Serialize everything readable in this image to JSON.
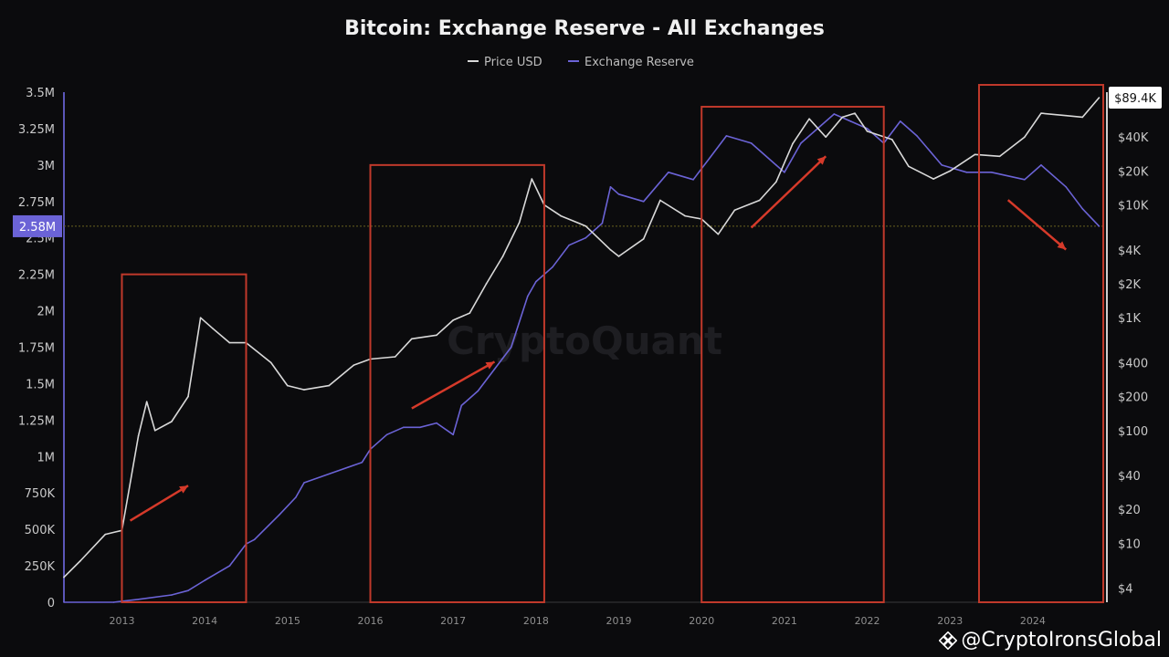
{
  "chart_data": {
    "type": "line",
    "title": "Bitcoin: Exchange Reserve - All Exchanges",
    "legend": [
      "Price USD",
      "Exchange Reserve"
    ],
    "legend_position": "top-center",
    "x_tick_labels": [
      "2013",
      "2014",
      "2015",
      "2016",
      "2017",
      "2018",
      "2019",
      "2020",
      "2021",
      "2022",
      "2023",
      "2024"
    ],
    "left_axis": {
      "ticks": [
        "0",
        "250K",
        "500K",
        "750K",
        "1M",
        "1.25M",
        "1.5M",
        "1.75M",
        "2M",
        "2.25M",
        "2.5M",
        "2.75M",
        "3M",
        "3.25M",
        "3.5M"
      ],
      "ylim": [
        0,
        3500000
      ]
    },
    "right_axis": {
      "scale": "log",
      "ticks": [
        "$4",
        "$10",
        "$20",
        "$40",
        "$100",
        "$200",
        "$400",
        "$1K",
        "$2K",
        "$4K",
        "$10K",
        "$20K",
        "$40K"
      ],
      "ylim": [
        3,
        100000
      ]
    },
    "current_reserve_label": "2.58M",
    "current_reserve_value": 2580000,
    "current_price_label": "$89.4K",
    "current_price_value": 89400,
    "series": [
      {
        "name": "Exchange Reserve",
        "axis": "left",
        "color": "#6b63d6",
        "x": [
          2012.3,
          2012.9,
          2013.2,
          2013.6,
          2013.8,
          2014.0,
          2014.3,
          2014.5,
          2014.6,
          2014.9,
          2015.1,
          2015.2,
          2015.4,
          2015.6,
          2015.9,
          2016.0,
          2016.2,
          2016.4,
          2016.6,
          2016.8,
          2017.0,
          2017.1,
          2017.3,
          2017.5,
          2017.7,
          2017.9,
          2018.0,
          2018.2,
          2018.4,
          2018.6,
          2018.8,
          2018.9,
          2019.0,
          2019.3,
          2019.6,
          2019.9,
          2020.1,
          2020.3,
          2020.6,
          2020.9,
          2021.0,
          2021.2,
          2021.4,
          2021.6,
          2021.8,
          2022.0,
          2022.2,
          2022.4,
          2022.6,
          2022.9,
          2023.2,
          2023.5,
          2023.9,
          2024.1,
          2024.4,
          2024.6,
          2024.8
        ],
        "y": [
          0,
          0,
          20000,
          50000,
          80000,
          150000,
          250000,
          400000,
          430000,
          600000,
          720000,
          820000,
          860000,
          900000,
          960000,
          1050000,
          1150000,
          1200000,
          1200000,
          1230000,
          1150000,
          1350000,
          1450000,
          1600000,
          1750000,
          2100000,
          2200000,
          2300000,
          2450000,
          2500000,
          2600000,
          2850000,
          2800000,
          2750000,
          2950000,
          2900000,
          3050000,
          3200000,
          3150000,
          3000000,
          2950000,
          3150000,
          3250000,
          3350000,
          3300000,
          3250000,
          3150000,
          3300000,
          3200000,
          3000000,
          2950000,
          2950000,
          2900000,
          3000000,
          2850000,
          2700000,
          2580000
        ]
      },
      {
        "name": "Price USD",
        "axis": "right",
        "color": "#d9d9d9",
        "x": [
          2012.3,
          2012.5,
          2012.8,
          2013.0,
          2013.2,
          2013.3,
          2013.4,
          2013.6,
          2013.8,
          2013.95,
          2014.1,
          2014.3,
          2014.5,
          2014.8,
          2015.0,
          2015.2,
          2015.5,
          2015.8,
          2016.0,
          2016.3,
          2016.5,
          2016.8,
          2017.0,
          2017.2,
          2017.4,
          2017.6,
          2017.8,
          2017.95,
          2018.1,
          2018.3,
          2018.6,
          2018.9,
          2019.0,
          2019.3,
          2019.5,
          2019.8,
          2020.0,
          2020.2,
          2020.4,
          2020.7,
          2020.9,
          2021.1,
          2021.3,
          2021.5,
          2021.7,
          2021.85,
          2022.0,
          2022.3,
          2022.5,
          2022.8,
          2023.0,
          2023.3,
          2023.6,
          2023.9,
          2024.1,
          2024.4,
          2024.6,
          2024.8
        ],
        "y": [
          5,
          7,
          12,
          13,
          90,
          180,
          100,
          120,
          200,
          1000,
          800,
          600,
          600,
          400,
          250,
          230,
          250,
          380,
          430,
          450,
          650,
          700,
          950,
          1100,
          2000,
          3500,
          7000,
          17000,
          10000,
          8000,
          6500,
          4000,
          3500,
          5000,
          11000,
          8000,
          7500,
          5500,
          9000,
          11000,
          16000,
          35000,
          58000,
          40000,
          60000,
          65000,
          45000,
          38000,
          22000,
          17000,
          20000,
          28000,
          27000,
          40000,
          65000,
          62000,
          60000,
          89400
        ]
      }
    ]
  },
  "watermark": "CryptoQuant",
  "credit": "@CryptoIronsGlobal",
  "icons": {
    "credit_icon": "exchange-logo-icon"
  }
}
